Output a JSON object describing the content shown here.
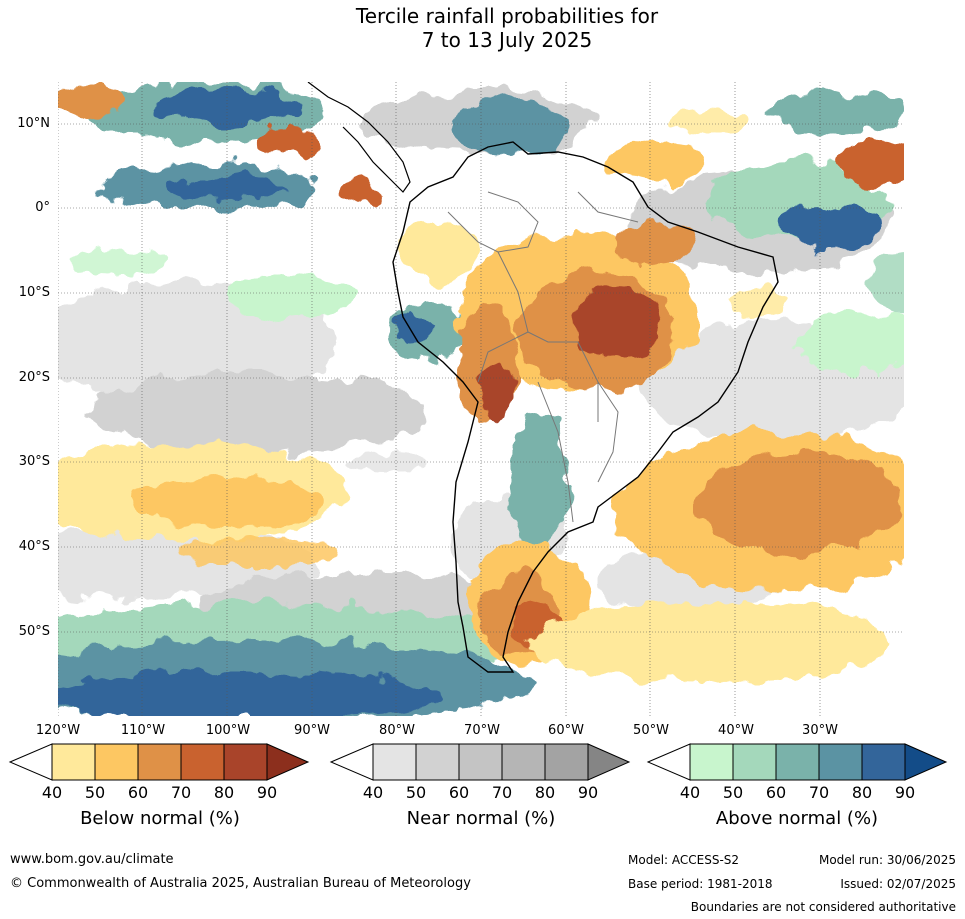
{
  "title_line1": "Tercile rainfall probabilities for",
  "title_line2": "7 to 13 July 2025",
  "lat_labels": [
    "10°N",
    "0°",
    "10°S",
    "20°S",
    "30°S",
    "40°S",
    "50°S"
  ],
  "lon_labels": [
    "120°W",
    "110°W",
    "100°W",
    "90°W",
    "80°W",
    "70°W",
    "60°W",
    "50°W",
    "40°W",
    "30°W"
  ],
  "colorbars": [
    {
      "title": "Below normal (%)",
      "ticks": [
        "40",
        "50",
        "60",
        "70",
        "80",
        "90"
      ],
      "colors": [
        "#ffe99b",
        "#fdc762",
        "#df9147",
        "#c9622f",
        "#a9442a",
        "#8c2f1d"
      ]
    },
    {
      "title": "Near normal (%)",
      "ticks": [
        "40",
        "50",
        "60",
        "70",
        "80",
        "90"
      ],
      "colors": [
        "#e4e4e4",
        "#d2d2d2",
        "#c4c4c4",
        "#b5b5b5",
        "#a3a3a3",
        "#858585"
      ]
    },
    {
      "title": "Above normal (%)",
      "ticks": [
        "40",
        "50",
        "60",
        "70",
        "80",
        "90"
      ],
      "colors": [
        "#c8f5cd",
        "#a4d8bb",
        "#7ab2aa",
        "#5b93a3",
        "#33659a",
        "#134c88"
      ]
    }
  ],
  "footer": {
    "website": "www.bom.gov.au/climate",
    "copyright": "© Commonwealth of Australia 2025, Australian Bureau of Meteorology",
    "model": "Model: ACCESS-S2",
    "model_run": "Model run: 30/06/2025",
    "base_period": "Base period: 1981-2018",
    "issued": "Issued: 02/07/2025",
    "disclaimer": "Boundaries are not considered authoritative"
  }
}
